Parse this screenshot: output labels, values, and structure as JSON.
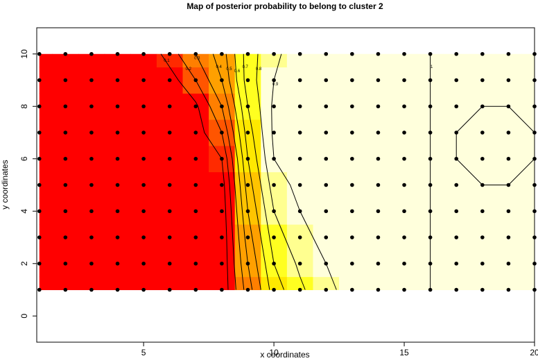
{
  "chart_data": {
    "type": "contour",
    "title": "Map of posterior probability to belong to cluster  2",
    "xlabel": "x coordinates",
    "ylabel": "y coordinates",
    "xlim": [
      0.9,
      20
    ],
    "ylim": [
      -1,
      11
    ],
    "xticks": [
      5,
      10,
      15,
      20
    ],
    "yticks": [
      0,
      2,
      4,
      6,
      8,
      10
    ],
    "x": [
      1,
      2,
      3,
      4,
      5,
      6,
      7,
      8,
      9,
      10,
      11,
      12,
      13,
      14,
      15,
      16,
      17,
      18,
      19,
      20
    ],
    "y": [
      1,
      2,
      3,
      4,
      5,
      6,
      7,
      8,
      9,
      10
    ],
    "z": [
      [
        0,
        0,
        0,
        0,
        0,
        0,
        0,
        0.02,
        0.35,
        0.65,
        0.78,
        0.88,
        0.93,
        0.98,
        0.98,
        1,
        1,
        1,
        1,
        1
      ],
      [
        0,
        0,
        0,
        0,
        0,
        0,
        0,
        0.02,
        0.4,
        0.7,
        0.82,
        0.9,
        0.95,
        0.98,
        0.98,
        1,
        1,
        1,
        1,
        1
      ],
      [
        0,
        0,
        0,
        0,
        0,
        0,
        0,
        0.02,
        0.45,
        0.75,
        0.87,
        0.93,
        0.96,
        0.98,
        0.98,
        1,
        1,
        1,
        1,
        1
      ],
      [
        0,
        0,
        0,
        0,
        0,
        0,
        0,
        0.03,
        0.5,
        0.8,
        0.9,
        0.95,
        0.97,
        0.98,
        0.98,
        1,
        1,
        1,
        1,
        1
      ],
      [
        0,
        0,
        0,
        0,
        0,
        0,
        0,
        0.05,
        0.55,
        0.85,
        0.93,
        0.97,
        0.98,
        0.98,
        0.98,
        1,
        1,
        1,
        1,
        1
      ],
      [
        0,
        0,
        0,
        0,
        0,
        0,
        0,
        0.1,
        0.6,
        0.9,
        0.96,
        0.98,
        0.98,
        0.98,
        0.98,
        1,
        1,
        0.99,
        0.99,
        1
      ],
      [
        0,
        0,
        0,
        0,
        0,
        0,
        0.05,
        0.2,
        0.65,
        0.92,
        0.97,
        0.98,
        0.98,
        0.98,
        0.98,
        1,
        1,
        0.99,
        0.99,
        1
      ],
      [
        0,
        0,
        0,
        0,
        0,
        0,
        0.08,
        0.3,
        0.7,
        0.92,
        0.97,
        0.98,
        0.98,
        0.98,
        0.98,
        1,
        1,
        1,
        1,
        1
      ],
      [
        0,
        0,
        0,
        0,
        0,
        0.05,
        0.2,
        0.4,
        0.75,
        0.9,
        0.96,
        0.98,
        0.98,
        0.98,
        0.98,
        1,
        1,
        1,
        1,
        1
      ],
      [
        0,
        0,
        0,
        0,
        0,
        0.15,
        0.3,
        0.45,
        0.75,
        0.88,
        0.95,
        0.98,
        0.98,
        0.98,
        0.98,
        1,
        1,
        1,
        1,
        1
      ]
    ],
    "breaks": [
      0,
      0.1,
      0.2,
      0.3,
      0.4,
      0.5,
      0.6,
      0.7,
      0.8,
      0.9,
      1
    ],
    "colors": [
      "#ff0000",
      "#ff2a00",
      "#ff5500",
      "#ff7f00",
      "#ffa000",
      "#ffc400",
      "#ffe800",
      "#ffff20",
      "#ffff90",
      "#ffffdc"
    ],
    "contour_levels": [
      0.1,
      0.2,
      0.3,
      0.4,
      0.5,
      0.6,
      0.7,
      0.8,
      0.9,
      1
    ],
    "point_color": "#000000"
  }
}
